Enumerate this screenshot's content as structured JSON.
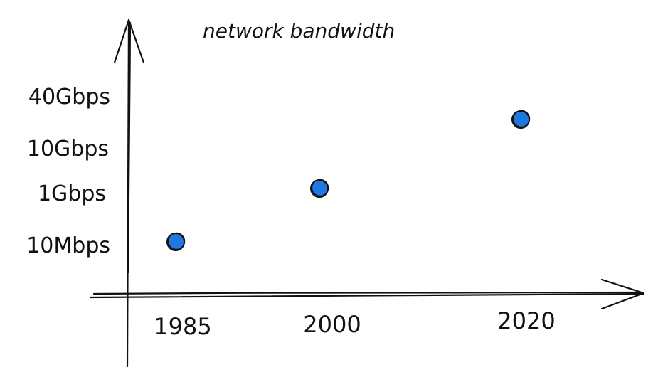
{
  "chart_data": {
    "type": "scatter",
    "title": "network bandwidth",
    "xlabel": "",
    "ylabel": "",
    "x_ticks": [
      "1985",
      "2000",
      "2020"
    ],
    "y_ticks": [
      "10Mbps",
      "1Gbps",
      "10Gbps",
      "40Gbps"
    ],
    "y_scale": "log",
    "grid": false,
    "legend": "none",
    "points": [
      {
        "x": "1985",
        "y": "10Mbps"
      },
      {
        "x": "2000",
        "y": "1Gbps"
      },
      {
        "x": "2020",
        "y": "40Gbps"
      }
    ],
    "colors": {
      "point_fill": "#1e78e0",
      "point_stroke": "#111111",
      "ink": "#111111"
    }
  }
}
